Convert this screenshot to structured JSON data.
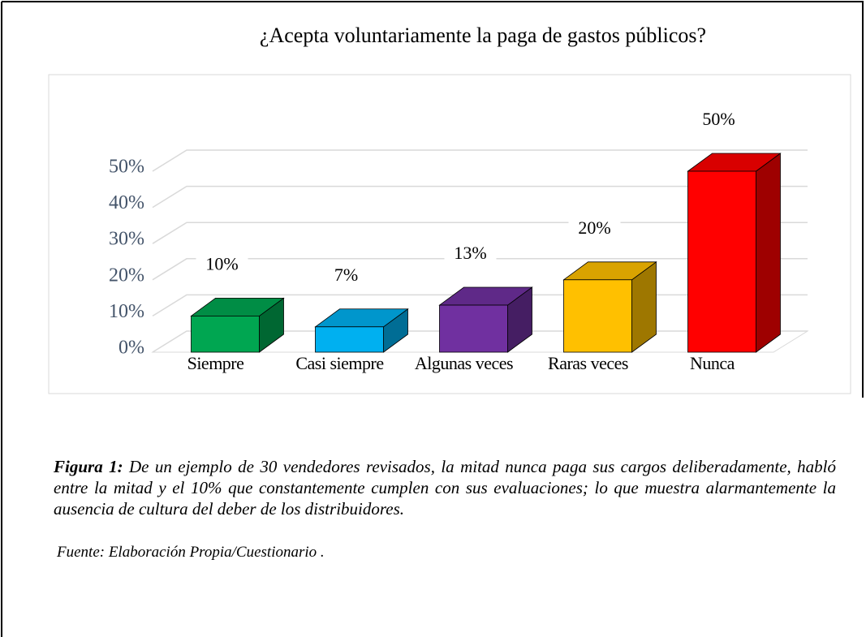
{
  "chart_data": {
    "type": "bar3d",
    "title": "¿Acepta voluntariamente la paga de gastos públicos?",
    "categories": [
      "Siempre",
      "Casi siempre",
      "Algunas veces",
      "Raras veces",
      "Nunca"
    ],
    "values": [
      10,
      7,
      13,
      20,
      50
    ],
    "value_labels": [
      "10%",
      "7%",
      "13%",
      "20%",
      "50%"
    ],
    "colors": [
      "#00a651",
      "#00b0f0",
      "#7030a0",
      "#ffc000",
      "#ff0000"
    ],
    "ylim": [
      0,
      50
    ],
    "yticks": [
      {
        "value": 0,
        "label": "0%"
      },
      {
        "value": 10,
        "label": "10%"
      },
      {
        "value": 20,
        "label": "20%"
      },
      {
        "value": 30,
        "label": "30%"
      },
      {
        "value": 40,
        "label": "40%"
      },
      {
        "value": 50,
        "label": "50%"
      }
    ],
    "grid": true,
    "caption_label": "Figura 1:",
    "caption": "De un ejemplo de 30 vendedores revisados, la mitad nunca paga sus cargos deliberadamente, habló entre la mitad y el 10% que constantemente cumplen con sus evaluaciones; lo que muestra alarmantemente la ausencia de cultura del deber de los distribuidores.",
    "source": "Fuente: Elaboración Propia/Cuestionario ."
  }
}
